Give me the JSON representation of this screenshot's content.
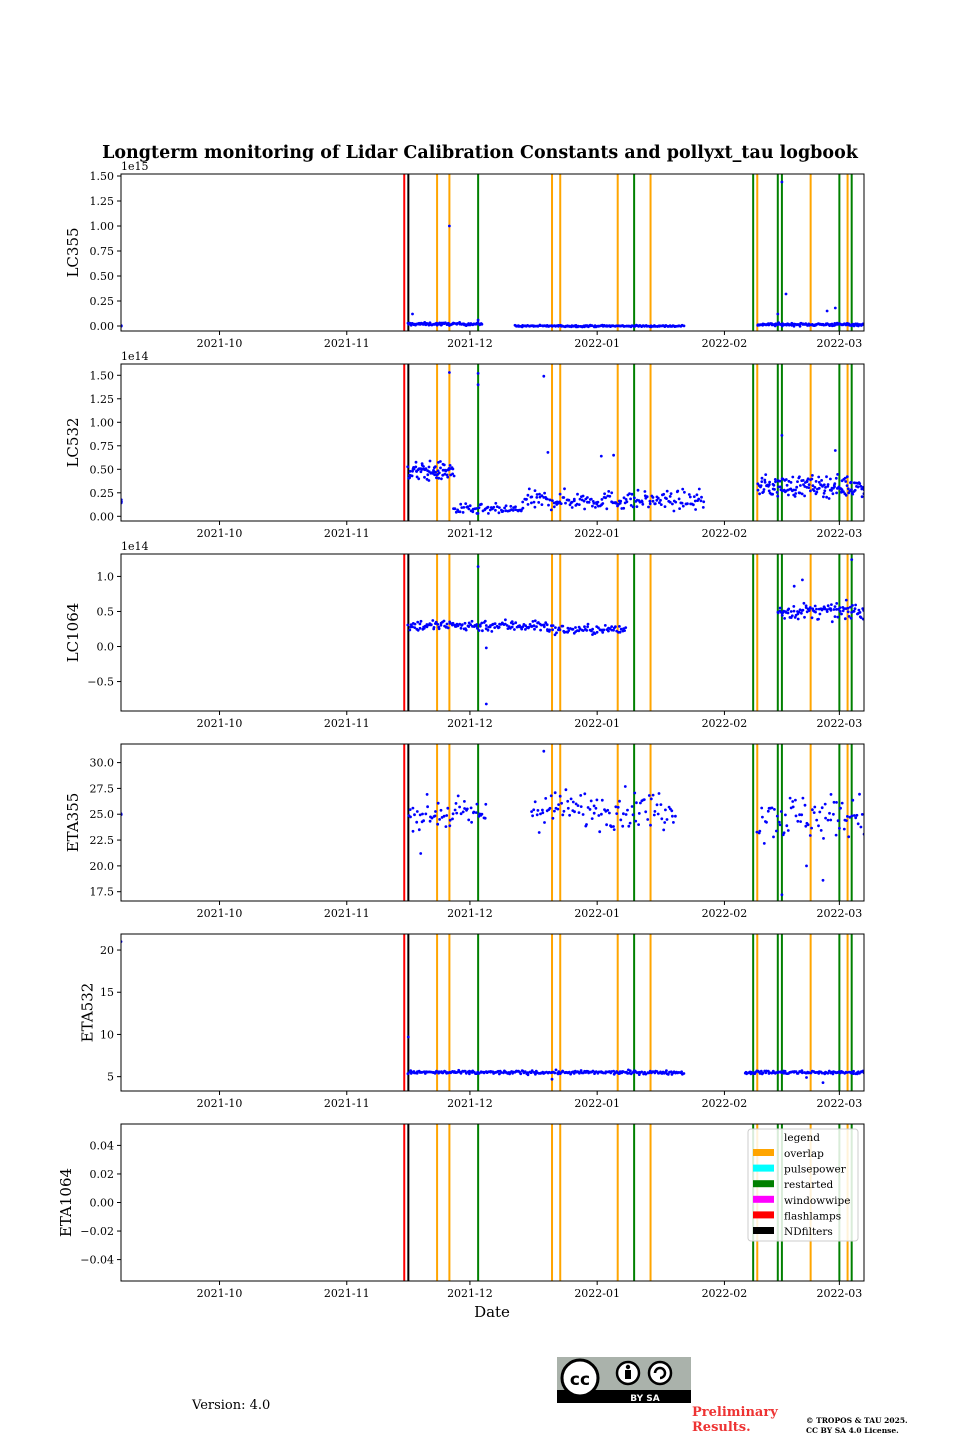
{
  "chart_data": {
    "type": "scatter",
    "title": "Longterm monitoring of Lidar Calibration Constants and pollyxt_tau logbook",
    "xlabel": "Date",
    "x_range": [
      "2021-09-07",
      "2022-03-07"
    ],
    "x_ticks": [
      "2021-10",
      "2021-11",
      "2021-12",
      "2022-01",
      "2022-02",
      "2022-03"
    ],
    "marker_color": "#0000ff",
    "logbook_events": [
      {
        "date": "2021-11-15",
        "type": "flashlamps"
      },
      {
        "date": "2021-11-16",
        "type": "NDfilters"
      },
      {
        "date": "2021-11-23",
        "type": "overlap"
      },
      {
        "date": "2021-11-26",
        "type": "overlap"
      },
      {
        "date": "2021-12-03",
        "type": "restarted"
      },
      {
        "date": "2021-12-21",
        "type": "overlap"
      },
      {
        "date": "2021-12-23",
        "type": "overlap"
      },
      {
        "date": "2022-01-06",
        "type": "overlap"
      },
      {
        "date": "2022-01-10",
        "type": "restarted"
      },
      {
        "date": "2022-01-14",
        "type": "overlap"
      },
      {
        "date": "2022-02-08",
        "type": "restarted"
      },
      {
        "date": "2022-02-09",
        "type": "overlap"
      },
      {
        "date": "2022-02-14",
        "type": "restarted"
      },
      {
        "date": "2022-02-15",
        "type": "restarted"
      },
      {
        "date": "2022-02-22",
        "type": "overlap"
      },
      {
        "date": "2022-03-01",
        "type": "restarted"
      },
      {
        "date": "2022-03-03",
        "type": "overlap"
      },
      {
        "date": "2022-03-04",
        "type": "restarted"
      }
    ],
    "legend": {
      "title": "legend",
      "placement": "upper-right of last panel",
      "entries": [
        {
          "label": "overlap",
          "color": "#ffa500"
        },
        {
          "label": "pulsepower",
          "color": "#00ffff"
        },
        {
          "label": "restarted",
          "color": "#008000"
        },
        {
          "label": "windowwipe",
          "color": "#ff00ff"
        },
        {
          "label": "flashlamps",
          "color": "#ff0000"
        },
        {
          "label": "NDfilters",
          "color": "#000000"
        }
      ]
    },
    "panels": [
      {
        "name": "LC355",
        "ylabel": "LC355",
        "exponent": "1e15",
        "ylim": [
          -0.05,
          1.52
        ],
        "yticks": [
          "0.00",
          "0.25",
          "0.50",
          "0.75",
          "1.00",
          "1.25",
          "1.50"
        ],
        "ytick_values": [
          0,
          0.25,
          0.5,
          0.75,
          1.0,
          1.25,
          1.5
        ],
        "series": [
          {
            "start": "2021-09-07",
            "end": "2021-09-07",
            "mean": 0.0,
            "noise": 0.005,
            "n": 3
          },
          {
            "start": "2021-11-16",
            "end": "2021-12-04",
            "mean": 0.02,
            "noise": 0.01,
            "n": 90
          },
          {
            "start": "2021-12-12",
            "end": "2022-01-22",
            "mean": 0.0,
            "noise": 0.006,
            "n": 170
          },
          {
            "start": "2022-02-09",
            "end": "2022-03-07",
            "mean": 0.015,
            "noise": 0.01,
            "n": 130
          }
        ],
        "outliers": [
          [
            "2021-11-17",
            0.12
          ],
          [
            "2021-11-26",
            1.0
          ],
          [
            "2021-12-03",
            0.06
          ],
          [
            "2022-02-15",
            1.44
          ],
          [
            "2022-02-16",
            0.32
          ],
          [
            "2022-02-26",
            0.15
          ],
          [
            "2022-02-28",
            0.18
          ],
          [
            "2022-02-14",
            0.12
          ]
        ]
      },
      {
        "name": "LC532",
        "ylabel": "LC532",
        "exponent": "1e14",
        "ylim": [
          -0.05,
          1.62
        ],
        "yticks": [
          "0.00",
          "0.25",
          "0.50",
          "0.75",
          "1.00",
          "1.25",
          "1.50"
        ],
        "ytick_values": [
          0,
          0.25,
          0.5,
          0.75,
          1.0,
          1.25,
          1.5
        ],
        "series": [
          {
            "start": "2021-09-07",
            "end": "2021-09-07",
            "mean": 0.15,
            "noise": 0.02,
            "n": 5
          },
          {
            "start": "2021-11-16",
            "end": "2021-11-27",
            "mean": 0.48,
            "noise": 0.07,
            "n": 80
          },
          {
            "start": "2021-11-27",
            "end": "2021-12-14",
            "mean": 0.07,
            "noise": 0.04,
            "n": 60
          },
          {
            "start": "2021-12-14",
            "end": "2022-01-27",
            "mean": 0.17,
            "noise": 0.07,
            "n": 180
          },
          {
            "start": "2022-02-09",
            "end": "2022-03-07",
            "mean": 0.32,
            "noise": 0.08,
            "n": 160
          }
        ],
        "outliers": [
          [
            "2021-11-26",
            1.53
          ],
          [
            "2021-12-03",
            1.52
          ],
          [
            "2021-12-03",
            1.4
          ],
          [
            "2021-12-19",
            1.49
          ],
          [
            "2021-12-20",
            0.68
          ],
          [
            "2022-01-02",
            0.64
          ],
          [
            "2022-01-05",
            0.65
          ],
          [
            "2022-02-15",
            0.86
          ],
          [
            "2022-02-28",
            0.7
          ]
        ]
      },
      {
        "name": "LC1064",
        "ylabel": "LC1064",
        "exponent": "1e14",
        "ylim": [
          -0.92,
          1.32
        ],
        "yticks": [
          "−0.5",
          "0.0",
          "0.5",
          "1.0"
        ],
        "ytick_values": [
          -0.5,
          0.0,
          0.5,
          1.0
        ],
        "series": [
          {
            "start": "2021-11-16",
            "end": "2021-12-20",
            "mean": 0.3,
            "noise": 0.06,
            "n": 140
          },
          {
            "start": "2021-12-20",
            "end": "2022-01-08",
            "mean": 0.24,
            "noise": 0.05,
            "n": 70
          },
          {
            "start": "2022-02-14",
            "end": "2022-03-07",
            "mean": 0.5,
            "noise": 0.08,
            "n": 100
          }
        ],
        "outliers": [
          [
            "2021-12-03",
            1.14
          ],
          [
            "2021-12-05",
            -0.02
          ],
          [
            "2021-12-05",
            -0.82
          ],
          [
            "2022-02-18",
            0.86
          ],
          [
            "2022-02-20",
            0.95
          ],
          [
            "2022-03-04",
            1.24
          ]
        ]
      },
      {
        "name": "ETA355",
        "ylabel": "ETA355",
        "ylim": [
          16.6,
          31.8
        ],
        "yticks": [
          "17.5",
          "20.0",
          "22.5",
          "25.0",
          "27.5",
          "30.0"
        ],
        "ytick_values": [
          17.5,
          20.0,
          22.5,
          25.0,
          27.5,
          30.0
        ],
        "series": [
          {
            "start": "2021-09-07",
            "end": "2021-09-07",
            "mean": 25.0,
            "noise": 0.1,
            "n": 2
          },
          {
            "start": "2021-11-16",
            "end": "2021-12-05",
            "mean": 25.0,
            "noise": 1.0,
            "n": 60
          },
          {
            "start": "2021-12-16",
            "end": "2022-01-20",
            "mean": 25.5,
            "noise": 1.3,
            "n": 110
          },
          {
            "start": "2022-02-09",
            "end": "2022-03-07",
            "mean": 24.8,
            "noise": 1.6,
            "n": 80
          }
        ],
        "outliers": [
          [
            "2021-11-19",
            21.2
          ],
          [
            "2021-12-19",
            31.1
          ],
          [
            "2022-02-15",
            17.2
          ],
          [
            "2022-02-25",
            18.6
          ],
          [
            "2022-02-21",
            20.0
          ]
        ]
      },
      {
        "name": "ETA532",
        "ylabel": "ETA532",
        "ylim": [
          3.3,
          21.9
        ],
        "yticks": [
          "5",
          "10",
          "15",
          "20"
        ],
        "ytick_values": [
          5,
          10,
          15,
          20
        ],
        "series": [
          {
            "start": "2021-11-16",
            "end": "2022-01-22",
            "mean": 5.5,
            "noise": 0.15,
            "n": 260
          },
          {
            "start": "2022-02-06",
            "end": "2022-03-07",
            "mean": 5.5,
            "noise": 0.15,
            "n": 110
          }
        ],
        "outliers": [
          [
            "2021-09-07",
            21.0
          ],
          [
            "2021-11-16",
            9.7
          ],
          [
            "2021-12-21",
            4.7
          ],
          [
            "2022-02-25",
            4.3
          ],
          [
            "2022-02-21",
            4.9
          ]
        ]
      },
      {
        "name": "ETA1064",
        "ylabel": "ETA1064",
        "ylim": [
          -0.055,
          0.055
        ],
        "yticks": [
          "−0.04",
          "−0.02",
          "0.00",
          "0.02",
          "0.04"
        ],
        "ytick_values": [
          -0.04,
          -0.02,
          0.0,
          0.02,
          0.04
        ],
        "series": [],
        "outliers": []
      }
    ]
  },
  "footer": {
    "version": "Version: 4.0",
    "license_badge": "BY SA",
    "preliminary": [
      "Preliminary",
      "Results."
    ],
    "copyright": [
      "© TROPOS & TAU 2025.",
      "CC BY SA 4.0 License."
    ]
  }
}
